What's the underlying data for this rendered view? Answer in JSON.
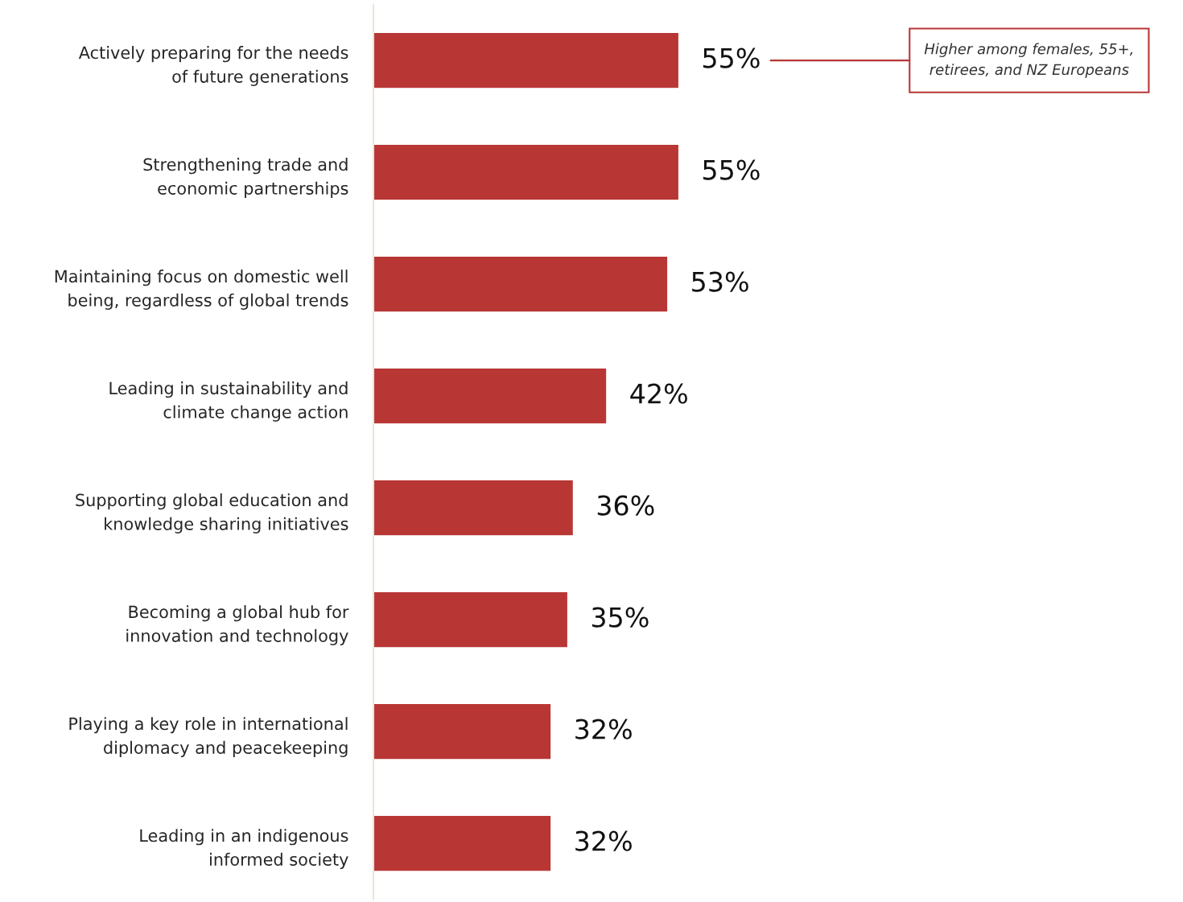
{
  "chart_data": {
    "type": "bar",
    "orientation": "horizontal",
    "categories": [
      "Actively preparing for the needs\nof future generations",
      "Strengthening trade and\neconomic partnerships",
      "Maintaining focus on domestic well\nbeing, regardless of global trends",
      "Leading in sustainability and\nclimate change action",
      "Supporting global education and\nknowledge sharing initiatives",
      "Becoming a global hub for\ninnovation and technology",
      "Playing a key role in international\ndiplomacy and peacekeeping",
      "Leading in an indigenous\ninformed society"
    ],
    "values": [
      55,
      55,
      53,
      42,
      36,
      35,
      32,
      32
    ],
    "value_labels": [
      "55%",
      "55%",
      "53%",
      "42%",
      "36%",
      "35%",
      "32%",
      "32%"
    ],
    "color": "#b83735",
    "annotations": [
      "Higher among females, 55+,\nretirees, and NZ Europeans"
    ],
    "grid": false,
    "legend": false
  }
}
